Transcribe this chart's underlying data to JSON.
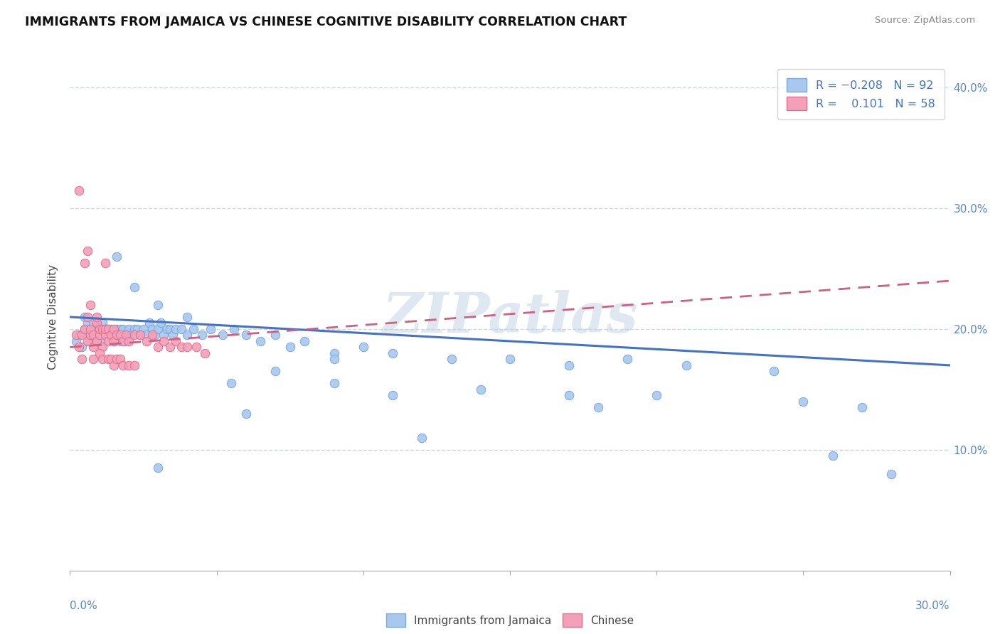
{
  "title": "IMMIGRANTS FROM JAMAICA VS CHINESE COGNITIVE DISABILITY CORRELATION CHART",
  "source": "Source: ZipAtlas.com",
  "ylabel": "Cognitive Disability",
  "xlim": [
    0.0,
    0.3
  ],
  "ylim": [
    0.0,
    0.42
  ],
  "color_blue": "#A8C8F0",
  "color_pink": "#F4A0B8",
  "color_blue_edge": "#7AAAD8",
  "color_pink_edge": "#E07090",
  "color_blue_line": "#4472C4",
  "color_pink_line": "#D06080",
  "color_grid": "#C8D8EC",
  "watermark": "ZIPatlas",
  "jamaica_x": [
    0.002,
    0.003,
    0.004,
    0.005,
    0.005,
    0.006,
    0.006,
    0.007,
    0.007,
    0.008,
    0.008,
    0.009,
    0.009,
    0.01,
    0.01,
    0.011,
    0.011,
    0.012,
    0.012,
    0.013,
    0.013,
    0.014,
    0.014,
    0.015,
    0.015,
    0.016,
    0.016,
    0.017,
    0.017,
    0.018,
    0.018,
    0.019,
    0.019,
    0.02,
    0.02,
    0.021,
    0.022,
    0.023,
    0.024,
    0.025,
    0.026,
    0.027,
    0.028,
    0.029,
    0.03,
    0.031,
    0.032,
    0.033,
    0.034,
    0.035,
    0.036,
    0.038,
    0.04,
    0.042,
    0.045,
    0.048,
    0.052,
    0.056,
    0.06,
    0.065,
    0.07,
    0.075,
    0.08,
    0.09,
    0.1,
    0.11,
    0.13,
    0.15,
    0.17,
    0.19,
    0.21,
    0.24,
    0.26,
    0.28,
    0.016,
    0.022,
    0.03,
    0.04,
    0.055,
    0.07,
    0.09,
    0.11,
    0.14,
    0.17,
    0.2,
    0.25,
    0.27,
    0.12,
    0.18,
    0.09,
    0.06,
    0.03
  ],
  "jamaica_y": [
    0.19,
    0.195,
    0.185,
    0.2,
    0.21,
    0.195,
    0.205,
    0.19,
    0.2,
    0.195,
    0.205,
    0.19,
    0.2,
    0.195,
    0.2,
    0.19,
    0.205,
    0.195,
    0.2,
    0.195,
    0.2,
    0.195,
    0.2,
    0.195,
    0.19,
    0.2,
    0.195,
    0.19,
    0.2,
    0.195,
    0.2,
    0.19,
    0.195,
    0.195,
    0.2,
    0.195,
    0.2,
    0.2,
    0.195,
    0.2,
    0.195,
    0.205,
    0.2,
    0.195,
    0.2,
    0.205,
    0.195,
    0.2,
    0.2,
    0.195,
    0.2,
    0.2,
    0.195,
    0.2,
    0.195,
    0.2,
    0.195,
    0.2,
    0.195,
    0.19,
    0.195,
    0.185,
    0.19,
    0.18,
    0.185,
    0.18,
    0.175,
    0.175,
    0.17,
    0.175,
    0.17,
    0.165,
    0.095,
    0.08,
    0.26,
    0.235,
    0.22,
    0.21,
    0.155,
    0.165,
    0.155,
    0.145,
    0.15,
    0.145,
    0.145,
    0.14,
    0.135,
    0.11,
    0.135,
    0.175,
    0.13,
    0.085
  ],
  "chinese_x": [
    0.002,
    0.003,
    0.004,
    0.005,
    0.006,
    0.006,
    0.007,
    0.007,
    0.008,
    0.008,
    0.009,
    0.009,
    0.01,
    0.01,
    0.011,
    0.011,
    0.012,
    0.012,
    0.013,
    0.013,
    0.014,
    0.015,
    0.015,
    0.016,
    0.017,
    0.018,
    0.019,
    0.02,
    0.022,
    0.024,
    0.026,
    0.028,
    0.03,
    0.032,
    0.034,
    0.036,
    0.038,
    0.04,
    0.043,
    0.046,
    0.003,
    0.004,
    0.005,
    0.006,
    0.007,
    0.008,
    0.009,
    0.01,
    0.011,
    0.012,
    0.013,
    0.014,
    0.015,
    0.016,
    0.017,
    0.018,
    0.02,
    0.022
  ],
  "chinese_y": [
    0.195,
    0.185,
    0.195,
    0.2,
    0.19,
    0.21,
    0.195,
    0.2,
    0.185,
    0.195,
    0.19,
    0.205,
    0.195,
    0.2,
    0.185,
    0.2,
    0.195,
    0.2,
    0.19,
    0.2,
    0.195,
    0.19,
    0.2,
    0.195,
    0.195,
    0.19,
    0.195,
    0.19,
    0.195,
    0.195,
    0.19,
    0.195,
    0.185,
    0.19,
    0.185,
    0.19,
    0.185,
    0.185,
    0.185,
    0.18,
    0.315,
    0.175,
    0.255,
    0.265,
    0.22,
    0.175,
    0.21,
    0.18,
    0.175,
    0.255,
    0.175,
    0.175,
    0.17,
    0.175,
    0.175,
    0.17,
    0.17,
    0.17
  ],
  "trend_blue_x0": 0.0,
  "trend_blue_y0": 0.21,
  "trend_blue_x1": 0.3,
  "trend_blue_y1": 0.17,
  "trend_pink_x0": 0.0,
  "trend_pink_y0": 0.185,
  "trend_pink_x1": 0.3,
  "trend_pink_y1": 0.24
}
